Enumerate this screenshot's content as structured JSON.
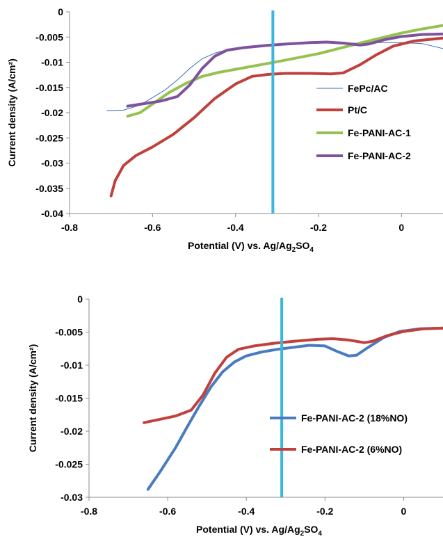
{
  "chart_data": [
    {
      "type": "line",
      "xlabel": "Potential (V) vs. Ag/Ag",
      "xlabel_sub1": "2",
      "xlabel_mid": "SO",
      "xlabel_sub2": "4",
      "ylabel": "Current density (A/cm²)",
      "xlim": [
        -0.8,
        0.1
      ],
      "ylim": [
        -0.04,
        0
      ],
      "xticks": [
        "-0.8",
        "-0.6",
        "-0.4",
        "-0.2",
        "0"
      ],
      "yticks": [
        "0",
        "-0.005",
        "-0.01",
        "-0.015",
        "-0.02",
        "-0.025",
        "-0.03",
        "-0.035",
        "-0.04"
      ],
      "marker_line_x": -0.31,
      "legend_position": "right",
      "series": [
        {
          "name": "FePc/AC",
          "color": "#3a6fb5",
          "width": 1,
          "points": [
            [
              -0.71,
              -0.0196
            ],
            [
              -0.67,
              -0.0195
            ],
            [
              -0.63,
              -0.0185
            ],
            [
              -0.6,
              -0.017
            ],
            [
              -0.57,
              -0.0155
            ],
            [
              -0.54,
              -0.0135
            ],
            [
              -0.51,
              -0.0112
            ],
            [
              -0.48,
              -0.0093
            ],
            [
              -0.45,
              -0.0082
            ],
            [
              -0.42,
              -0.0075
            ],
            [
              -0.38,
              -0.0071
            ],
            [
              -0.34,
              -0.0068
            ],
            [
              -0.3,
              -0.0066
            ],
            [
              -0.25,
              -0.0064
            ],
            [
              -0.2,
              -0.0062
            ],
            [
              -0.15,
              -0.0062
            ],
            [
              -0.1,
              -0.0062
            ],
            [
              -0.05,
              -0.0061
            ],
            [
              0.0,
              -0.0061
            ],
            [
              0.05,
              -0.0063
            ],
            [
              0.1,
              -0.0073
            ]
          ]
        },
        {
          "name": "Pt/C",
          "color": "#c0403c",
          "width": 4,
          "points": [
            [
              -0.7,
              -0.0365
            ],
            [
              -0.69,
              -0.0335
            ],
            [
              -0.67,
              -0.0305
            ],
            [
              -0.64,
              -0.0285
            ],
            [
              -0.6,
              -0.0268
            ],
            [
              -0.55,
              -0.0243
            ],
            [
              -0.5,
              -0.021
            ],
            [
              -0.45,
              -0.0172
            ],
            [
              -0.4,
              -0.0143
            ],
            [
              -0.36,
              -0.0128
            ],
            [
              -0.32,
              -0.0124
            ],
            [
              -0.28,
              -0.0122
            ],
            [
              -0.22,
              -0.0122
            ],
            [
              -0.17,
              -0.0123
            ],
            [
              -0.14,
              -0.0121
            ],
            [
              -0.1,
              -0.0105
            ],
            [
              -0.06,
              -0.0085
            ],
            [
              -0.02,
              -0.0068
            ],
            [
              0.03,
              -0.0058
            ],
            [
              0.1,
              -0.0052
            ]
          ]
        },
        {
          "name": "Fe-PANI-AC-1",
          "color": "#95c24f",
          "width": 4,
          "points": [
            [
              -0.66,
              -0.0207
            ],
            [
              -0.63,
              -0.02
            ],
            [
              -0.6,
              -0.0183
            ],
            [
              -0.56,
              -0.016
            ],
            [
              -0.52,
              -0.0142
            ],
            [
              -0.48,
              -0.0128
            ],
            [
              -0.44,
              -0.012
            ],
            [
              -0.38,
              -0.0111
            ],
            [
              -0.3,
              -0.0099
            ],
            [
              -0.2,
              -0.0083
            ],
            [
              -0.1,
              -0.0062
            ],
            [
              0.0,
              -0.0042
            ],
            [
              0.05,
              -0.0034
            ],
            [
              0.1,
              -0.0027
            ]
          ]
        },
        {
          "name": "Fe-PANI-AC-2",
          "color": "#7e529e",
          "width": 4,
          "points": [
            [
              -0.66,
              -0.0187
            ],
            [
              -0.62,
              -0.0182
            ],
            [
              -0.58,
              -0.0177
            ],
            [
              -0.54,
              -0.0168
            ],
            [
              -0.51,
              -0.0145
            ],
            [
              -0.48,
              -0.0112
            ],
            [
              -0.45,
              -0.0088
            ],
            [
              -0.42,
              -0.0076
            ],
            [
              -0.38,
              -0.0071
            ],
            [
              -0.33,
              -0.0067
            ],
            [
              -0.28,
              -0.0064
            ],
            [
              -0.22,
              -0.0061
            ],
            [
              -0.18,
              -0.006
            ],
            [
              -0.14,
              -0.0062
            ],
            [
              -0.1,
              -0.0066
            ],
            [
              -0.08,
              -0.0064
            ],
            [
              -0.04,
              -0.0055
            ],
            [
              0.0,
              -0.0049
            ],
            [
              0.05,
              -0.0045
            ],
            [
              0.1,
              -0.0044
            ]
          ]
        }
      ]
    },
    {
      "type": "line",
      "xlabel": "Potential (V) vs. Ag/Ag",
      "xlabel_sub1": "2",
      "xlabel_mid": "SO",
      "xlabel_sub2": "4",
      "ylabel": "Current density (A/cm²)",
      "xlim": [
        -0.8,
        0.1
      ],
      "ylim": [
        -0.03,
        0
      ],
      "xticks": [
        "-0.8",
        "-0.6",
        "-0.4",
        "-0.2",
        "0"
      ],
      "yticks": [
        "0",
        "-0.005",
        "-0.01",
        "-0.015",
        "-0.02",
        "-0.025",
        "-0.03"
      ],
      "marker_line_x": -0.31,
      "legend_position": "right",
      "series": [
        {
          "name": "Fe-PANI-AC-2 (18%NO)",
          "color": "#4a7bbf",
          "width": 4,
          "points": [
            [
              -0.65,
              -0.0288
            ],
            [
              -0.62,
              -0.0262
            ],
            [
              -0.58,
              -0.0225
            ],
            [
              -0.55,
              -0.0193
            ],
            [
              -0.52,
              -0.0162
            ],
            [
              -0.49,
              -0.0133
            ],
            [
              -0.46,
              -0.011
            ],
            [
              -0.43,
              -0.0095
            ],
            [
              -0.4,
              -0.0086
            ],
            [
              -0.36,
              -0.008
            ],
            [
              -0.32,
              -0.0076
            ],
            [
              -0.28,
              -0.0073
            ],
            [
              -0.24,
              -0.007
            ],
            [
              -0.2,
              -0.0071
            ],
            [
              -0.17,
              -0.0079
            ],
            [
              -0.14,
              -0.0086
            ],
            [
              -0.12,
              -0.0085
            ],
            [
              -0.09,
              -0.0073
            ],
            [
              -0.05,
              -0.0058
            ],
            [
              -0.01,
              -0.0049
            ],
            [
              0.04,
              -0.0045
            ],
            [
              0.1,
              -0.0044
            ]
          ]
        },
        {
          "name": "Fe-PANI-AC-2 (6%NO)",
          "color": "#c0403c",
          "width": 4,
          "points": [
            [
              -0.66,
              -0.0187
            ],
            [
              -0.62,
              -0.0182
            ],
            [
              -0.58,
              -0.0177
            ],
            [
              -0.54,
              -0.0168
            ],
            [
              -0.51,
              -0.0145
            ],
            [
              -0.48,
              -0.0112
            ],
            [
              -0.45,
              -0.0088
            ],
            [
              -0.42,
              -0.0076
            ],
            [
              -0.38,
              -0.0071
            ],
            [
              -0.33,
              -0.0067
            ],
            [
              -0.28,
              -0.0064
            ],
            [
              -0.22,
              -0.0061
            ],
            [
              -0.18,
              -0.006
            ],
            [
              -0.14,
              -0.0062
            ],
            [
              -0.1,
              -0.0066
            ],
            [
              -0.08,
              -0.0064
            ],
            [
              -0.04,
              -0.0055
            ],
            [
              0.0,
              -0.0049
            ],
            [
              0.05,
              -0.0045
            ],
            [
              0.1,
              -0.0044
            ]
          ]
        }
      ]
    }
  ]
}
